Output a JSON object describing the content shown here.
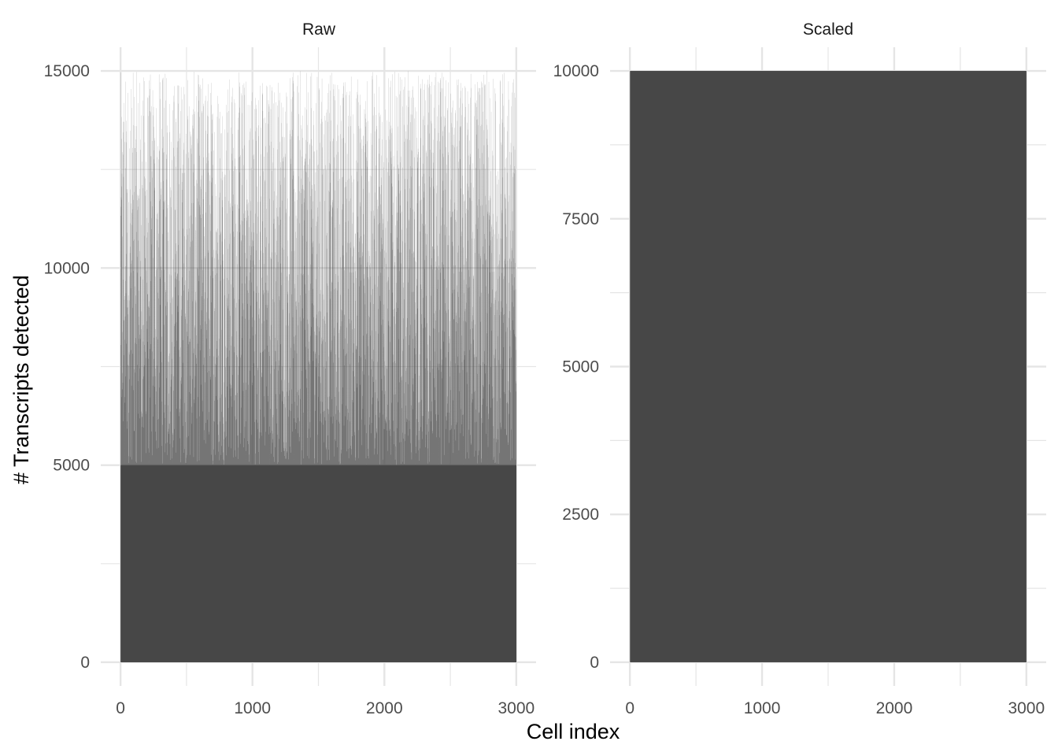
{
  "chart_data": {
    "type": "bar",
    "xlabel": "Cell index",
    "ylabel": "# Transcripts detected",
    "grid": true,
    "legend": "none",
    "bar_color": "#474747",
    "gridline_color": "#e5e5e5",
    "panels": [
      {
        "title": "Raw",
        "x_range": [
          1,
          3000
        ],
        "xticks": [
          0,
          1000,
          2000,
          3000
        ],
        "xlim": [
          -150,
          3150
        ],
        "yticks": [
          0,
          5000,
          10000,
          15000
        ],
        "ylim": [
          -600,
          15600
        ],
        "description": "3000 bars, one per cell, heights roughly uniform between ~5000 and ~15000",
        "values_min": 5000,
        "values_max": 15000
      },
      {
        "title": "Scaled",
        "x_range": [
          1,
          3000
        ],
        "xticks": [
          0,
          1000,
          2000,
          3000
        ],
        "xlim": [
          -150,
          3150
        ],
        "yticks": [
          0,
          2500,
          5000,
          7500,
          10000
        ],
        "ylim": [
          -400,
          10400
        ],
        "description": "3000 bars, every cell scaled to 10000",
        "constant_value": 10000
      }
    ]
  }
}
